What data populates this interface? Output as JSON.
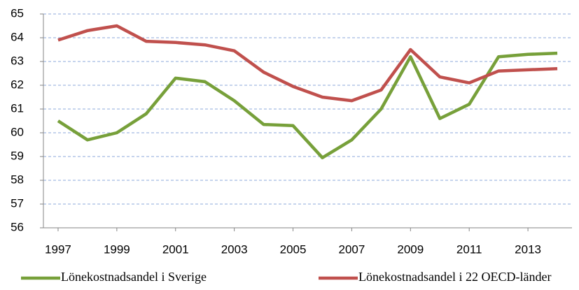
{
  "chart_data": {
    "type": "line",
    "x": [
      1997,
      1998,
      1999,
      2000,
      2001,
      2002,
      2003,
      2004,
      2005,
      2006,
      2007,
      2008,
      2009,
      2010,
      2011,
      2012,
      2013,
      2014
    ],
    "series": [
      {
        "name": "Lönekostnadsandel i Sverige",
        "color": "#77a03a",
        "values": [
          60.5,
          59.7,
          60.0,
          60.8,
          62.3,
          62.15,
          61.35,
          60.35,
          60.3,
          58.95,
          59.7,
          61.0,
          63.2,
          60.6,
          61.2,
          63.2,
          63.3,
          63.35
        ]
      },
      {
        "name": "Lönekostnadsandel i 22 OECD-länder",
        "color": "#c0504d",
        "values": [
          63.9,
          64.3,
          64.5,
          63.85,
          63.8,
          63.7,
          63.45,
          62.55,
          61.95,
          61.5,
          61.35,
          61.8,
          63.5,
          62.35,
          62.1,
          62.6,
          62.65,
          62.7
        ]
      }
    ],
    "xlim": [
      1996.5,
      2014.5
    ],
    "xticks": [
      1997,
      1999,
      2001,
      2003,
      2005,
      2007,
      2009,
      2011,
      2013
    ],
    "ylim": [
      56,
      65
    ],
    "yticks": [
      56,
      57,
      58,
      59,
      60,
      61,
      62,
      63,
      64,
      65
    ],
    "grid": true,
    "legend": "bottom"
  }
}
